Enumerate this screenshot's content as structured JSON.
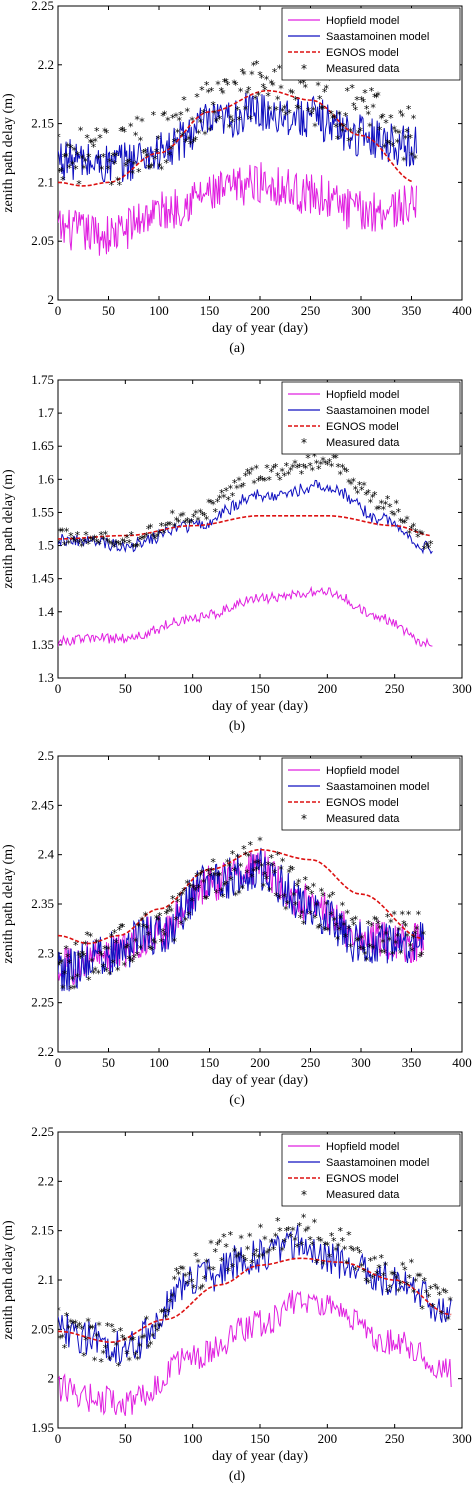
{
  "colors": {
    "hopfield": "#e020e0",
    "saastamoinen": "#1010c0",
    "egnos": "#dd1111",
    "measured": "#000000"
  },
  "chart_data": [
    {
      "type": "line",
      "caption": "(a)",
      "xlabel": "day of year (day)",
      "ylabel": "zenith path delay (m)",
      "xlim": [
        0,
        400
      ],
      "ylim": [
        2,
        2.25
      ],
      "xticks": [
        0,
        50,
        100,
        150,
        200,
        250,
        300,
        350,
        400
      ],
      "xtick_labels": [
        "0",
        "50",
        "100",
        "150",
        "200",
        "250",
        "300",
        "350",
        "400"
      ],
      "yticks": [
        2,
        2.05,
        2.1,
        2.15,
        2.2,
        2.25
      ],
      "ytick_labels": [
        "2",
        "2.05",
        "2.1",
        "2.15",
        "2.2",
        "2.25"
      ],
      "legend_position": "top-right",
      "legend": [
        "Hopfield model",
        "Saastamoinen model",
        "EGNOS model",
        "Measured data"
      ],
      "x_range": [
        0,
        355
      ],
      "series": [
        {
          "name": "Hopfield model",
          "style": "line",
          "color": "#e020e0",
          "x": [
            0,
            50,
            100,
            150,
            200,
            250,
            300,
            355
          ],
          "y": [
            2.06,
            2.055,
            2.075,
            2.09,
            2.1,
            2.09,
            2.075,
            2.08
          ],
          "noise": 0.018
        },
        {
          "name": "Saastamoinen model",
          "style": "line",
          "color": "#1010c0",
          "x": [
            0,
            50,
            100,
            150,
            200,
            250,
            300,
            355
          ],
          "y": [
            2.12,
            2.115,
            2.125,
            2.15,
            2.16,
            2.155,
            2.14,
            2.13
          ],
          "noise": 0.018
        },
        {
          "name": "EGNOS model",
          "style": "dashed",
          "color": "#dd1111",
          "x": [
            0,
            25,
            50,
            100,
            150,
            208,
            250,
            300,
            355
          ],
          "y": [
            2.1,
            2.097,
            2.1,
            2.125,
            2.16,
            2.178,
            2.17,
            2.14,
            2.1
          ]
        },
        {
          "name": "Measured data",
          "style": "marker",
          "color": "#000000",
          "x": [
            0,
            50,
            100,
            150,
            200,
            250,
            300,
            355
          ],
          "y": [
            2.125,
            2.12,
            2.135,
            2.165,
            2.18,
            2.17,
            2.155,
            2.14
          ],
          "noise": 0.025
        }
      ]
    },
    {
      "type": "line",
      "caption": "(b)",
      "xlabel": "day of year (day)",
      "ylabel": "zenith path delay (m)",
      "xlim": [
        0,
        300
      ],
      "ylim": [
        1.3,
        1.75
      ],
      "xticks": [
        0,
        50,
        100,
        150,
        200,
        250,
        300
      ],
      "xtick_labels": [
        "0",
        "50",
        "100",
        "150",
        "200",
        "250",
        "300"
      ],
      "yticks": [
        1.3,
        1.35,
        1.4,
        1.45,
        1.5,
        1.55,
        1.6,
        1.65,
        1.7,
        1.75
      ],
      "ytick_labels": [
        "1.3",
        "1.35",
        "1.4",
        "1.45",
        "1.5",
        "1.55",
        "1.6",
        "1.65",
        "1.7",
        "1.75"
      ],
      "legend_position": "top-right",
      "legend": [
        "Hopfield model",
        "Saastamoinen model",
        "EGNOS model",
        "Measured data"
      ],
      "x_range": [
        0,
        278
      ],
      "series": [
        {
          "name": "Hopfield model",
          "style": "line",
          "color": "#e020e0",
          "x": [
            0,
            25,
            50,
            100,
            150,
            200,
            240,
            278
          ],
          "y": [
            1.355,
            1.36,
            1.36,
            1.39,
            1.42,
            1.43,
            1.39,
            1.35
          ],
          "noise": 0.008
        },
        {
          "name": "Saastamoinen model",
          "style": "line",
          "color": "#1010c0",
          "x": [
            0,
            25,
            50,
            100,
            150,
            200,
            240,
            278
          ],
          "y": [
            1.51,
            1.505,
            1.5,
            1.53,
            1.575,
            1.59,
            1.54,
            1.495
          ],
          "noise": 0.01
        },
        {
          "name": "EGNOS model",
          "style": "dashed",
          "color": "#dd1111",
          "x": [
            0,
            50,
            100,
            150,
            200,
            250,
            278
          ],
          "y": [
            1.51,
            1.515,
            1.53,
            1.545,
            1.545,
            1.53,
            1.515
          ]
        },
        {
          "name": "Measured data",
          "style": "marker",
          "color": "#000000",
          "x": [
            0,
            25,
            50,
            100,
            150,
            200,
            240,
            278
          ],
          "y": [
            1.512,
            1.508,
            1.505,
            1.545,
            1.605,
            1.625,
            1.565,
            1.5
          ],
          "noise": 0.012
        }
      ]
    },
    {
      "type": "line",
      "caption": "(c)",
      "xlabel": "day of year (day)",
      "ylabel": "zenith path delay (m)",
      "xlim": [
        0,
        400
      ],
      "ylim": [
        2.2,
        2.5
      ],
      "xticks": [
        0,
        50,
        100,
        150,
        200,
        250,
        300,
        350,
        400
      ],
      "xtick_labels": [
        "0",
        "50",
        "100",
        "150",
        "200",
        "250",
        "300",
        "350",
        "400"
      ],
      "yticks": [
        2.2,
        2.25,
        2.3,
        2.35,
        2.4,
        2.45,
        2.5
      ],
      "ytick_labels": [
        "2.2",
        "2.25",
        "2.3",
        "2.35",
        "2.4",
        "2.45",
        "2.5"
      ],
      "legend_position": "top-right",
      "legend": [
        "Hopfield model",
        "Saastamoinen model",
        "EGNOS model",
        "Measured data"
      ],
      "x_range": [
        0,
        362
      ],
      "series": [
        {
          "name": "Hopfield model",
          "style": "line",
          "color": "#e020e0",
          "x": [
            0,
            50,
            100,
            150,
            200,
            250,
            300,
            362
          ],
          "y": [
            2.285,
            2.3,
            2.32,
            2.37,
            2.385,
            2.35,
            2.315,
            2.31
          ],
          "noise": 0.02
        },
        {
          "name": "Saastamoinen model",
          "style": "line",
          "color": "#1010c0",
          "x": [
            0,
            50,
            100,
            150,
            200,
            250,
            300,
            362
          ],
          "y": [
            2.28,
            2.3,
            2.32,
            2.37,
            2.385,
            2.345,
            2.31,
            2.31
          ],
          "noise": 0.022
        },
        {
          "name": "EGNOS model",
          "style": "dashed",
          "color": "#dd1111",
          "x": [
            0,
            30,
            60,
            100,
            150,
            200,
            250,
            300,
            362
          ],
          "y": [
            2.318,
            2.31,
            2.318,
            2.345,
            2.385,
            2.405,
            2.395,
            2.36,
            2.315
          ]
        },
        {
          "name": "Measured data",
          "style": "marker",
          "color": "#000000",
          "x": [
            0,
            50,
            100,
            150,
            200,
            250,
            300,
            362
          ],
          "y": [
            2.285,
            2.3,
            2.325,
            2.375,
            2.39,
            2.35,
            2.315,
            2.315
          ],
          "noise": 0.025
        }
      ]
    },
    {
      "type": "line",
      "caption": "(d)",
      "xlabel": "day of year (day)",
      "ylabel": "zenith path delay (m)",
      "xlim": [
        0,
        300
      ],
      "ylim": [
        1.95,
        2.25
      ],
      "xticks": [
        0,
        50,
        100,
        150,
        200,
        250,
        300
      ],
      "xtick_labels": [
        "0",
        "50",
        "100",
        "150",
        "200",
        "250",
        "300"
      ],
      "yticks": [
        1.95,
        2,
        2.05,
        2.1,
        2.15,
        2.2,
        2.25
      ],
      "ytick_labels": [
        "1.95",
        "2",
        "2.05",
        "2.1",
        "2.15",
        "2.2",
        "2.25"
      ],
      "legend_position": "top-right",
      "legend": [
        "Hopfield model",
        "Saastamoinen model",
        "EGNOS model",
        "Measured data"
      ],
      "x_range": [
        0,
        292
      ],
      "series": [
        {
          "name": "Hopfield model",
          "style": "line",
          "color": "#e020e0",
          "x": [
            0,
            25,
            50,
            100,
            150,
            180,
            200,
            250,
            292
          ],
          "y": [
            1.99,
            1.98,
            1.975,
            2.02,
            2.055,
            2.08,
            2.07,
            2.035,
            2.005
          ],
          "noise": 0.015
        },
        {
          "name": "Saastamoinen model",
          "style": "line",
          "color": "#1010c0",
          "x": [
            0,
            25,
            50,
            100,
            150,
            180,
            200,
            250,
            292
          ],
          "y": [
            2.05,
            2.04,
            2.03,
            2.1,
            2.125,
            2.14,
            2.12,
            2.1,
            2.07
          ],
          "noise": 0.018
        },
        {
          "name": "EGNOS model",
          "style": "dashed",
          "color": "#dd1111",
          "x": [
            0,
            40,
            80,
            120,
            150,
            180,
            210,
            250,
            292
          ],
          "y": [
            2.048,
            2.037,
            2.06,
            2.095,
            2.115,
            2.122,
            2.118,
            2.1,
            2.065
          ]
        },
        {
          "name": "Measured data",
          "style": "marker",
          "color": "#000000",
          "x": [
            0,
            25,
            50,
            100,
            150,
            180,
            200,
            250,
            292
          ],
          "y": [
            2.05,
            2.04,
            2.03,
            2.11,
            2.14,
            2.155,
            2.13,
            2.105,
            2.07
          ],
          "noise": 0.022
        }
      ]
    }
  ]
}
